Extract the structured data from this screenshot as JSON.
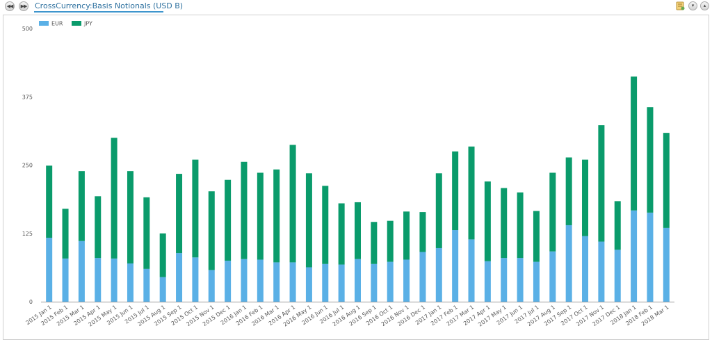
{
  "toolbar": {
    "title": "CrossCurrency:Basis Notionals (USD B)",
    "icons": [
      "rewind-icon",
      "fast-forward-icon",
      "notes-icon",
      "scroll-down-icon",
      "scroll-up-icon"
    ]
  },
  "colors": {
    "EUR": "#5ab0e6",
    "JPY": "#0a9b6b",
    "axis": "#999999",
    "text": "#555555"
  },
  "chart_data": {
    "type": "bar",
    "stacked": true,
    "title": "CrossCurrency:Basis Notionals (USD B)",
    "legend_position": "top-left",
    "grid": false,
    "ylim": [
      0,
      500
    ],
    "yticks": [
      0,
      125,
      250,
      375,
      500
    ],
    "categories": [
      "2015 Jan 1",
      "2015 Feb 1",
      "2015 Mar 1",
      "2015 Apr 1",
      "2015 May 1",
      "2015 Jun 1",
      "2015 Jul 1",
      "2015 Aug 1",
      "2015 Sep 1",
      "2015 Oct 1",
      "2015 Nov 1",
      "2015 Dec 1",
      "2016 Jan 1",
      "2016 Feb 1",
      "2016 Mar 1",
      "2016 Apr 1",
      "2016 May 1",
      "2016 Jun 1",
      "2016 Jul 1",
      "2016 Aug 1",
      "2016 Sep 1",
      "2016 Oct 1",
      "2016 Nov 1",
      "2016 Dec 1",
      "2017 Jan 1",
      "2017 Feb 1",
      "2017 Mar 1",
      "2017 Apr 1",
      "2017 May 1",
      "2017 Jun 1",
      "2017 Jul 1",
      "2017 Aug 1",
      "2017 Sep 1",
      "2017 Oct 1",
      "2017 Nov 1",
      "2017 Dec 1",
      "2018 Jan 1",
      "2018 Feb 1",
      "2018 Mar 1"
    ],
    "series": [
      {
        "name": "EUR",
        "values": [
          117,
          79,
          111,
          80,
          79,
          70,
          60,
          45,
          89,
          81,
          58,
          75,
          78,
          77,
          72,
          72,
          63,
          69,
          68,
          78,
          69,
          73,
          77,
          91,
          98,
          131,
          114,
          74,
          80,
          80,
          73,
          92,
          140,
          120,
          110,
          95,
          167,
          163,
          135
        ]
      },
      {
        "name": "JPY",
        "values": [
          132,
          91,
          128,
          113,
          221,
          169,
          131,
          80,
          145,
          179,
          144,
          148,
          178,
          159,
          170,
          215,
          172,
          143,
          112,
          104,
          77,
          75,
          88,
          73,
          137,
          144,
          170,
          146,
          128,
          120,
          93,
          144,
          124,
          140,
          213,
          89,
          245,
          193,
          174
        ]
      }
    ]
  }
}
